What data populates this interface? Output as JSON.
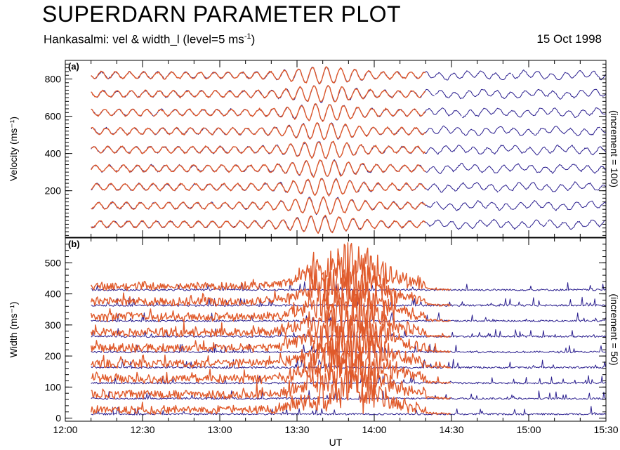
{
  "header": {
    "title": "SUPERDARN PARAMETER PLOT",
    "subtitle_main": "Hankasalmi: vel & width_l (level=5 ms",
    "subtitle_sup": "-1",
    "subtitle_end": ")",
    "date": "15 Oct 1998"
  },
  "colors": {
    "series_a": "#2b1f8f",
    "series_b": "#e05a2b"
  },
  "chart_data": [
    {
      "type": "line",
      "panel_label": "(a)",
      "ylabel": "Velocity (ms⁻¹)",
      "right_label": "(increment = 100)",
      "ylim": [
        -50,
        900
      ],
      "yticks": [
        200,
        400,
        600,
        800
      ],
      "xlim": [
        "12:00",
        "15:30"
      ],
      "offsets": [
        0,
        100,
        200,
        300,
        400,
        500,
        600,
        700,
        800
      ],
      "series": [
        {
          "color": "#2b1f8f",
          "range": [
            "12:10",
            "15:30"
          ]
        },
        {
          "color": "#e05a2b",
          "range": [
            "12:10",
            "14:20"
          ]
        }
      ]
    },
    {
      "type": "line",
      "panel_label": "(b)",
      "ylabel": "Width (ms⁻¹)",
      "right_label": "(increment = 50)",
      "ylim": [
        -10,
        580
      ],
      "yticks": [
        0,
        100,
        200,
        300,
        400,
        500
      ],
      "xlim": [
        "12:00",
        "15:30"
      ],
      "xticks": [
        "12:00",
        "12:30",
        "13:00",
        "13:30",
        "14:00",
        "14:30",
        "15:00",
        "15:30"
      ],
      "xlabel": "UT",
      "offsets": [
        0,
        50,
        100,
        150,
        200,
        250,
        300,
        350,
        400
      ],
      "series": [
        {
          "color": "#2b1f8f",
          "range": [
            "12:10",
            "15:30"
          ]
        },
        {
          "color": "#e05a2b",
          "range": [
            "12:10",
            "14:30"
          ]
        }
      ]
    }
  ]
}
